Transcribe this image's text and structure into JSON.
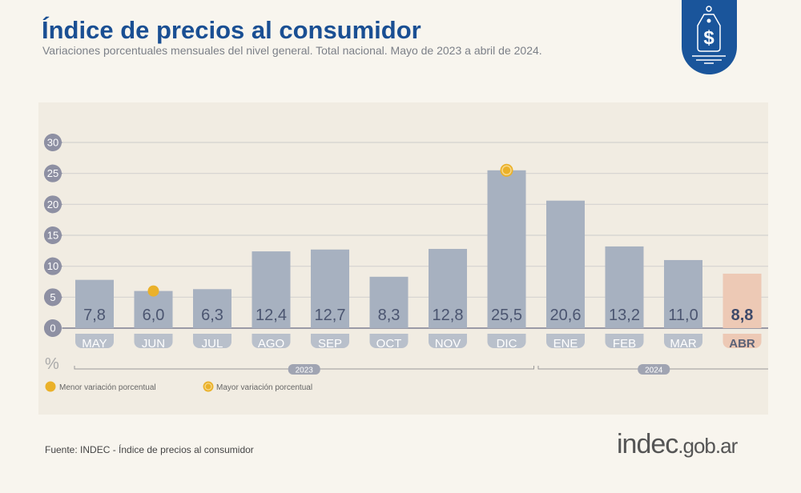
{
  "header": {
    "title": "Índice de precios al consumidor",
    "subtitle": "Variaciones porcentuales mensuales del nivel general. Total nacional. Mayo de 2023 a abril de 2024."
  },
  "badge": {
    "icon": "price-tag-dollar-icon",
    "color": "#1a559b"
  },
  "chart_data": {
    "type": "bar",
    "categories": [
      "MAY",
      "JUN",
      "JUL",
      "AGO",
      "SEP",
      "OCT",
      "NOV",
      "DIC",
      "ENE",
      "FEB",
      "MAR",
      "ABR"
    ],
    "values": [
      7.8,
      6.0,
      6.3,
      12.4,
      12.7,
      8.3,
      12.8,
      25.5,
      20.6,
      13.2,
      11.0,
      8.8
    ],
    "value_labels": [
      "7,8",
      "6,0",
      "6,3",
      "12,4",
      "12,7",
      "8,3",
      "12,8",
      "25,5",
      "20,6",
      "13,2",
      "11,0",
      "8,8"
    ],
    "ylabel": "%",
    "ylim": [
      0,
      30
    ],
    "yticks": [
      0,
      5,
      10,
      15,
      20,
      25,
      30
    ],
    "grid": true,
    "year_groups": [
      {
        "label": "2023",
        "from": "MAY",
        "to": "DIC"
      },
      {
        "label": "2024",
        "from": "ENE",
        "to": "ABR"
      }
    ],
    "lowest": "JUN",
    "highest": "DIC",
    "highlighted": "ABR",
    "colors": {
      "bar": "#a7b1c0",
      "highlight": "#edc9b5",
      "marker": "#eab12a",
      "tick_bubble": "#8e90a3"
    },
    "legend": {
      "position": "bottom-left",
      "items": [
        "Menor variación porcentual",
        "Mayor variación porcentual"
      ]
    }
  },
  "footer": {
    "source": "Fuente: INDEC - Índice de precios al consumidor",
    "logo_main": "indec",
    "logo_suffix": ".gob.ar"
  }
}
